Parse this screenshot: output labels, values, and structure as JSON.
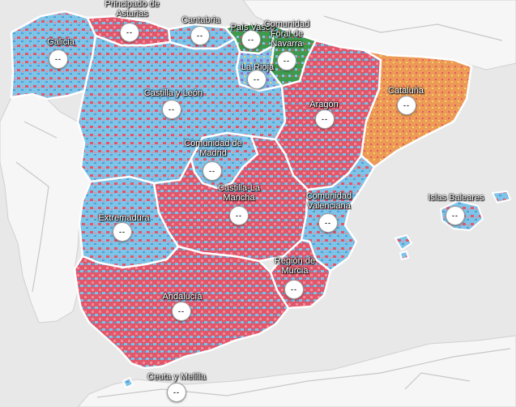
{
  "colors": {
    "sea": "#e8e8e8",
    "land_other": "#f6f6f6",
    "road": "#c7c7c7",
    "party_blue": "#7ec3e8",
    "party_blue_dark": "#4e9fd6",
    "party_red": "#e2566a",
    "party_red_light": "#ef8a98",
    "party_orange": "#ec9a55",
    "party_green": "#3f9a4d",
    "party_purple": "#9b6bc5",
    "party_yellow": "#f1d36a",
    "border": "#ffffff"
  },
  "regions": [
    {
      "id": "galicia",
      "label": "Galicia",
      "value": "--"
    },
    {
      "id": "asturias",
      "label": "Principado de\nAsturias",
      "value": "--"
    },
    {
      "id": "cantabria",
      "label": "Cantabria",
      "value": "--"
    },
    {
      "id": "pais-vasco",
      "label": "País Vasco",
      "value": "--"
    },
    {
      "id": "navarra",
      "label": "Comunidad\nForal de\nNavarra",
      "value": "--"
    },
    {
      "id": "la-rioja",
      "label": "La Rioja",
      "value": "--"
    },
    {
      "id": "castilla-leon",
      "label": "Castilla y León",
      "value": "--"
    },
    {
      "id": "aragon",
      "label": "Aragón",
      "value": "--"
    },
    {
      "id": "cataluna",
      "label": "Cataluña",
      "value": "--"
    },
    {
      "id": "madrid",
      "label": "Comunidad de\nMadrid",
      "value": "--"
    },
    {
      "id": "castilla-la-mancha",
      "label": "Castilla-La\nMancha",
      "value": "--"
    },
    {
      "id": "valenciana",
      "label": "Comunidad\nValenciana",
      "value": "--"
    },
    {
      "id": "baleares",
      "label": "Islas Baleares",
      "value": "--"
    },
    {
      "id": "extremadura",
      "label": "Extremadura",
      "value": "--"
    },
    {
      "id": "murcia",
      "label": "Región de\nMurcia",
      "value": "--"
    },
    {
      "id": "andalucia",
      "label": "Andalucía",
      "value": "--"
    },
    {
      "id": "ceuta-melilla",
      "label": "Ceuta y Melilla",
      "value": "--"
    }
  ]
}
